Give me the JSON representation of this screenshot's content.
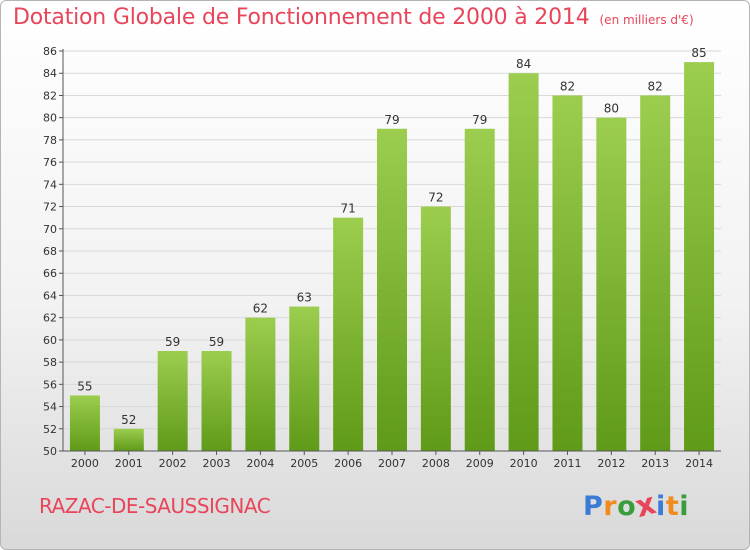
{
  "header": {
    "title": "Dotation Globale de Fonctionnement de 2000 à 2014",
    "unit": "(en milliers d'€)"
  },
  "footer": {
    "commune": "RAZAC-DE-SAUSSIGNAC",
    "logo": {
      "letters": [
        "P",
        "r",
        "o",
        "x",
        "i",
        "t",
        "i"
      ],
      "colors": [
        "#3a7bd5",
        "#f08c1e",
        "#3a9c3a",
        "#e8455a",
        "#3a7bd5",
        "#f08c1e",
        "#3a9c3a"
      ]
    }
  },
  "colors": {
    "accent": "#e8455a",
    "bar_top": "#9ccd4f",
    "bar_bottom": "#5f9a18",
    "grid": "#d9d9d9",
    "axis": "#555555"
  },
  "chart_data": {
    "type": "bar",
    "categories": [
      "2000",
      "2001",
      "2002",
      "2003",
      "2004",
      "2005",
      "2006",
      "2007",
      "2008",
      "2009",
      "2010",
      "2011",
      "2012",
      "2013",
      "2014"
    ],
    "values": [
      55,
      52,
      59,
      59,
      62,
      63,
      71,
      79,
      72,
      79,
      84,
      82,
      80,
      82,
      85
    ],
    "title": "Dotation Globale de Fonctionnement de 2000 à 2014",
    "subtitle": "(en milliers d'€)",
    "xlabel": "",
    "ylabel": "",
    "ylim": [
      50,
      86
    ],
    "yticks": [
      50,
      52,
      54,
      56,
      58,
      60,
      62,
      64,
      66,
      68,
      70,
      72,
      74,
      76,
      78,
      80,
      82,
      84,
      86
    ],
    "grid": true,
    "legend": "none"
  }
}
